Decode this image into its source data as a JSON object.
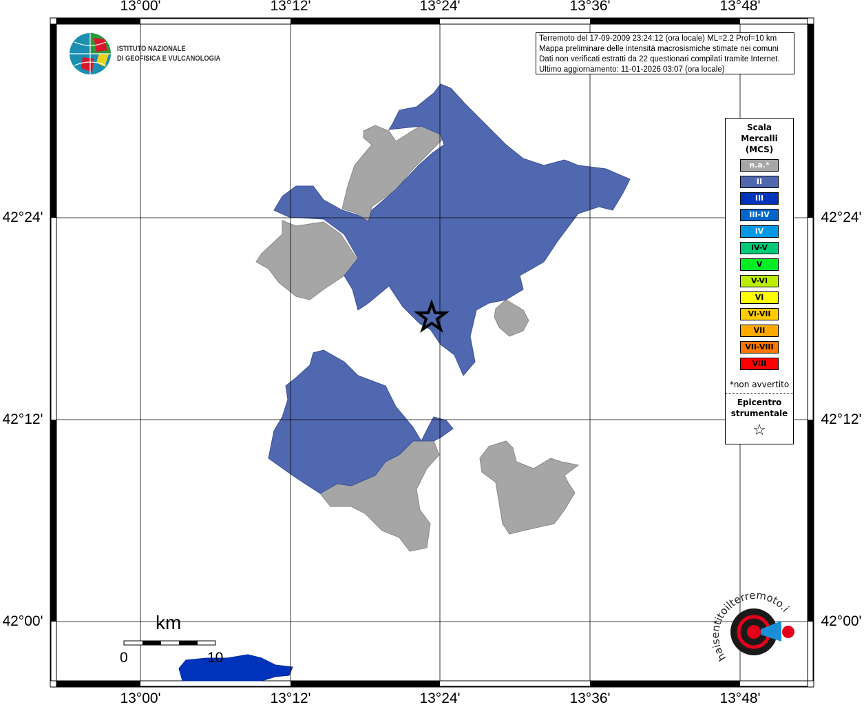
{
  "axes": {
    "lon_labels": [
      "13°00'",
      "13°12'",
      "13°24'",
      "13°36'",
      "13°48'"
    ],
    "lat_labels": [
      "42°24'",
      "42°12'",
      "42°00'"
    ]
  },
  "info": {
    "line1": "Terremoto del 17-09-2009 23:24:12 (ora locale) ML=2.2 Prof=10 km",
    "line2": "Mappa preliminare delle intensità macrosismiche stimate nei comuni",
    "line3": "Dati non verificati estratti da 22 questionari compilati tramite Internet.",
    "line4": "Ultimo aggiornamento: 11-01-2026 03:07 (ora locale)"
  },
  "legend": {
    "title1": "Scala",
    "title2": "Mercalli",
    "title3": "(MCS)",
    "items": [
      {
        "label": "n.a.*",
        "color": "#a6a6a6",
        "text": "#fff"
      },
      {
        "label": "II",
        "color": "#5068b0",
        "text": "#fff"
      },
      {
        "label": "III",
        "color": "#0033bb",
        "text": "#fff"
      },
      {
        "label": "III-IV",
        "color": "#0066cc",
        "text": "#fff"
      },
      {
        "label": "IV",
        "color": "#0099e6",
        "text": "#fff"
      },
      {
        "label": "IV-V",
        "color": "#00cc77",
        "text": "#000"
      },
      {
        "label": "V",
        "color": "#00ee22",
        "text": "#000"
      },
      {
        "label": "V-VI",
        "color": "#bbee00",
        "text": "#000"
      },
      {
        "label": "VI",
        "color": "#ffff00",
        "text": "#000"
      },
      {
        "label": "VI-VII",
        "color": "#ffcc00",
        "text": "#000"
      },
      {
        "label": "VII",
        "color": "#ffaa00",
        "text": "#000"
      },
      {
        "label": "VII-VIII",
        "color": "#ff7700",
        "text": "#000"
      },
      {
        "label": "VIII",
        "color": "#ff0000",
        "text": "#000"
      }
    ],
    "note": "*non avvertito",
    "epicentre1": "Epicentro",
    "epicentre2": "strumentale",
    "star": "☆"
  },
  "ingv": {
    "line1": "ISTITUTO NAZIONALE",
    "line2": "DI GEOFISICA E VULCANOLOGIA"
  },
  "scalebar": {
    "unit": "km",
    "start": "0",
    "end": "10"
  },
  "hsit_logo": "www.haisentitoilterremoto.it",
  "colors": {
    "na": "#a6a6a6",
    "II": "#5068b0",
    "III": "#0033bb"
  }
}
